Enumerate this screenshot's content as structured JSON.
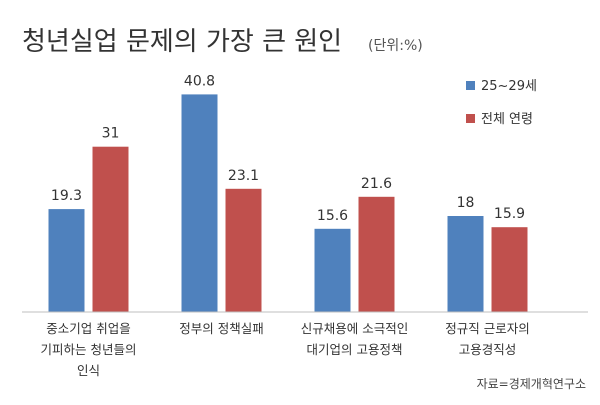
{
  "chart_data": {
    "type": "bar",
    "title": "청년실업 문제의 가장 큰 원인",
    "unit": "(단위:%)",
    "categories": [
      [
        "중소기업 취업을",
        "기피하는 청년들의",
        "인식"
      ],
      [
        "정부의 정책실패"
      ],
      [
        "신규채용에 소극적인",
        "대기업의 고용정책"
      ],
      [
        "정규직 근로자의",
        "고용경직성"
      ]
    ],
    "series": [
      {
        "name": "25~29세",
        "values": [
          19.3,
          40.8,
          15.6,
          18
        ],
        "color": "#4f81bd"
      },
      {
        "name": "전체 연령",
        "values": [
          31,
          23.1,
          21.6,
          15.9
        ],
        "color": "#c0504d"
      }
    ],
    "ylim": [
      0,
      45
    ],
    "legend_position": "top-right",
    "grid": false,
    "source": "자료=경제개혁연구소"
  }
}
